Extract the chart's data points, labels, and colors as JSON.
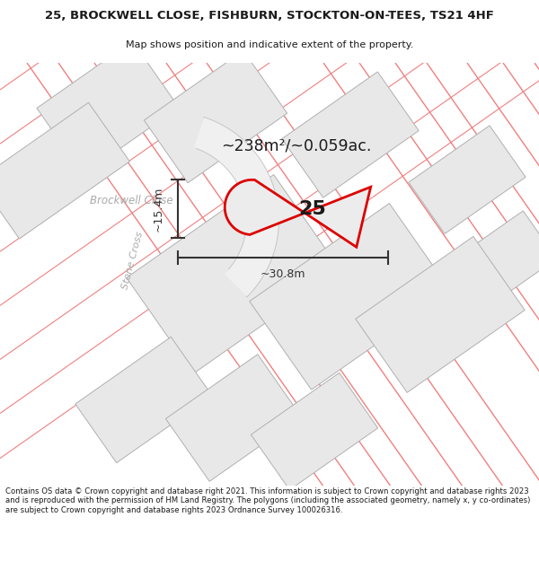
{
  "title_line1": "25, BROCKWELL CLOSE, FISHBURN, STOCKTON-ON-TEES, TS21 4HF",
  "title_line2": "Map shows position and indicative extent of the property.",
  "area_text": "~238m²/~0.059ac.",
  "number_text": "25",
  "dim_width": "~30.8m",
  "dim_height": "~15.4m",
  "street1": "Brockwell Close",
  "street2": "Stone Cross",
  "footer": "Contains OS data © Crown copyright and database right 2021. This information is subject to Crown copyright and database rights 2023 and is reproduced with the permission of HM Land Registry. The polygons (including the associated geometry, namely x, y co-ordinates) are subject to Crown copyright and database rights 2023 Ordnance Survey 100026316.",
  "bg_color": "#ffffff",
  "plot_fill": "#e8e8e8",
  "plot_outline": "#dd0000",
  "road_line_color": "#f08080",
  "bld_fill": "#e8e8e8",
  "bld_edge": "#b0b0b0",
  "grey_road_color": "#c0c0c0",
  "dark_text": "#1a1a1a",
  "grey_text": "#b0b0b0",
  "dim_color": "#333333"
}
